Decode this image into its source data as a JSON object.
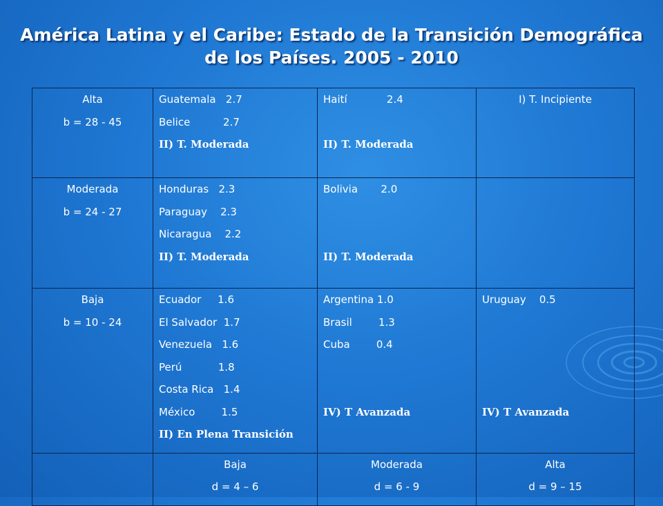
{
  "title": {
    "line1": "América Latina y el Caribe: Estado de la Transición Demográfica",
    "line2": "de los Países. 2005 - 2010"
  },
  "rows": [
    {
      "natality": {
        "label": "Alta",
        "range": "b = 28 - 45"
      },
      "cells": [
        {
          "countries": [
            "Guatemala   2.7",
            "Belice          2.7"
          ],
          "stage": "II) T. Moderada"
        },
        {
          "countries": [
            "Haití            2.4"
          ],
          "stage": "II) T. Moderada"
        },
        {
          "countries": [],
          "stage": "I) T. Incipiente"
        }
      ]
    },
    {
      "natality": {
        "label": "Moderada",
        "range": "b = 24 - 27"
      },
      "cells": [
        {
          "countries": [
            "Honduras   2.3",
            "Paraguay    2.3",
            "Nicaragua    2.2"
          ],
          "stage": "II) T. Moderada"
        },
        {
          "countries": [
            "Bolivia       2.0"
          ],
          "stage": "II) T. Moderada"
        },
        {
          "countries": [],
          "stage": ""
        }
      ]
    },
    {
      "natality": {
        "label": "Baja",
        "range": "b = 10 - 24"
      },
      "cells": [
        {
          "countries": [
            "Ecuador     1.6",
            "El Salvador  1.7",
            "Venezuela   1.6",
            "Perú           1.8",
            "Costa Rica   1.4",
            "México        1.5"
          ],
          "stage": "II) En Plena Transición"
        },
        {
          "countries": [
            "Argentina 1.0",
            "Brasil        1.3",
            "Cuba        0.4"
          ],
          "stage": "IV) T Avanzada"
        },
        {
          "countries": [
            "Uruguay    0.5"
          ],
          "stage": "IV) T Avanzada"
        }
      ]
    }
  ],
  "mortality": [
    {
      "label": "Baja",
      "range": "d = 4 – 6"
    },
    {
      "label": "Moderada",
      "range": "d = 6 - 9"
    },
    {
      "label": "Alta",
      "range": "d = 9 – 15"
    }
  ],
  "colors": {
    "background": "#1f78d3",
    "border": "#0c2450",
    "text": "#ffffff"
  }
}
